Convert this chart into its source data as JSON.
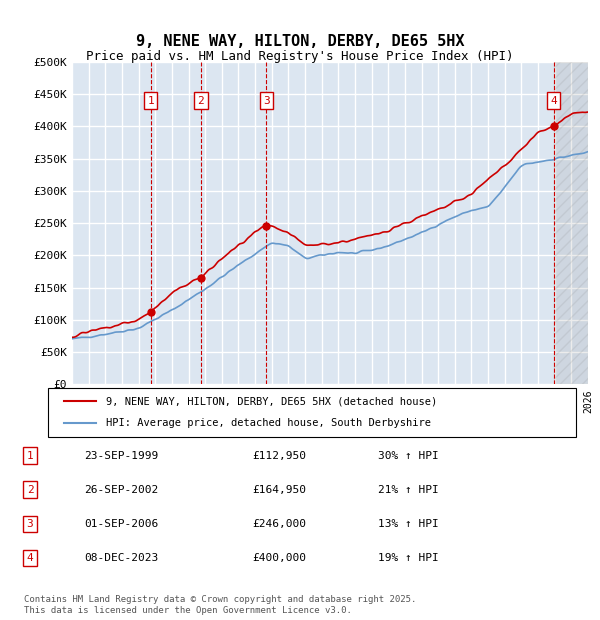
{
  "title_line1": "9, NENE WAY, HILTON, DERBY, DE65 5HX",
  "title_line2": "Price paid vs. HM Land Registry's House Price Index (HPI)",
  "ylabel": "",
  "xlabel": "",
  "ylim": [
    0,
    500000
  ],
  "yticks": [
    0,
    50000,
    100000,
    150000,
    200000,
    250000,
    300000,
    350000,
    400000,
    450000,
    500000
  ],
  "ytick_labels": [
    "£0",
    "£50K",
    "£100K",
    "£150K",
    "£200K",
    "£250K",
    "£300K",
    "£350K",
    "£400K",
    "£450K",
    "£500K"
  ],
  "bg_color": "#dce6f1",
  "plot_bg_color": "#dce6f1",
  "grid_color": "#ffffff",
  "red_color": "#cc0000",
  "blue_color": "#6699cc",
  "sale_dates": [
    1999.73,
    2002.74,
    2006.67,
    2023.94
  ],
  "sale_prices": [
    112950,
    164950,
    246000,
    400000
  ],
  "sale_labels": [
    "1",
    "2",
    "3",
    "4"
  ],
  "legend_line1": "9, NENE WAY, HILTON, DERBY, DE65 5HX (detached house)",
  "legend_line2": "HPI: Average price, detached house, South Derbyshire",
  "table_data": [
    [
      "1",
      "23-SEP-1999",
      "£112,950",
      "30% ↑ HPI"
    ],
    [
      "2",
      "26-SEP-2002",
      "£164,950",
      "21% ↑ HPI"
    ],
    [
      "3",
      "01-SEP-2006",
      "£246,000",
      "13% ↑ HPI"
    ],
    [
      "4",
      "08-DEC-2023",
      "£400,000",
      "19% ↑ HPI"
    ]
  ],
  "footnote": "Contains HM Land Registry data © Crown copyright and database right 2025.\nThis data is licensed under the Open Government Licence v3.0.",
  "xmin": 1995,
  "xmax": 2026
}
